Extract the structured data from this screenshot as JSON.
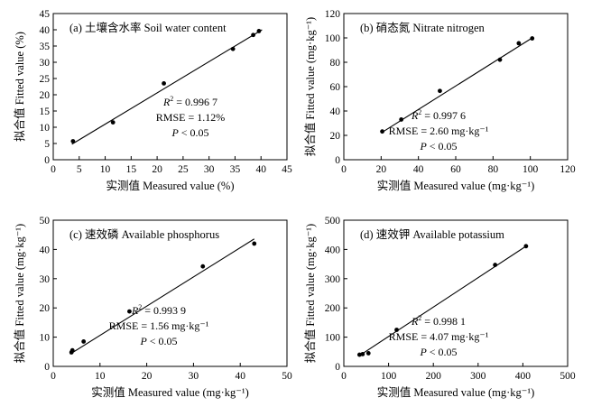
{
  "chart_data": [
    {
      "type": "scatter",
      "label": "(a) 土壤含水率 Soil water content",
      "xlabel": "实测值 Measured value (%)",
      "ylabel": "拟合值 Fitted value (%)",
      "xlim": [
        0,
        45
      ],
      "ylim": [
        0,
        45
      ],
      "xticks": [
        0,
        5,
        10,
        15,
        20,
        25,
        30,
        35,
        40,
        45
      ],
      "yticks": [
        0,
        5,
        10,
        15,
        20,
        25,
        30,
        35,
        40,
        45
      ],
      "grid": false,
      "points": {
        "x": [
          3.8,
          11.5,
          21.3,
          34.6,
          38.5,
          39.6
        ],
        "y": [
          5.7,
          11.5,
          23.5,
          34.1,
          38.4,
          39.6
        ]
      },
      "fit_line": {
        "x": [
          3.6,
          40.2
        ],
        "y": [
          4.8,
          40.0
        ]
      },
      "stats": {
        "r2_prefix": "R",
        "r2_sup": "2",
        "r2_value": " = 0.996 7",
        "rmse": "RMSE = 1.12%",
        "p_italic": "P",
        "p_rest": " < 0.05"
      }
    },
    {
      "type": "scatter",
      "label": "(b) 硝态氮 Nitrate nitrogen",
      "xlabel": "实测值 Measured value (mg·kg⁻¹)",
      "ylabel": "拟合值 Fitted value (mg·kg⁻¹)",
      "xlim": [
        0,
        120
      ],
      "ylim": [
        0,
        120
      ],
      "xticks": [
        0,
        20,
        40,
        60,
        80,
        100,
        120
      ],
      "yticks": [
        0,
        20,
        40,
        60,
        80,
        100,
        120
      ],
      "grid": false,
      "points": {
        "x": [
          20.6,
          30.8,
          51.5,
          83.7,
          93.8,
          101.0
        ],
        "y": [
          23.2,
          33.0,
          56.5,
          82.1,
          95.6,
          99.6
        ]
      },
      "fit_line": {
        "x": [
          20.0,
          101.0
        ],
        "y": [
          22.0,
          100.0
        ]
      },
      "stats": {
        "r2_prefix": "R",
        "r2_sup": "2",
        "r2_value": " = 0.997 6",
        "rmse": "RMSE = 2.60 mg·kg⁻¹",
        "p_italic": "P",
        "p_rest": " < 0.05"
      }
    },
    {
      "type": "scatter",
      "label": "(c) 速效磷 Available phosphorus",
      "xlabel": "实测值 Measured value (mg·kg⁻¹)",
      "ylabel": "拟合值 Fitted value (mg·kg⁻¹)",
      "xlim": [
        0,
        50
      ],
      "ylim": [
        0,
        50
      ],
      "xticks": [
        0,
        10,
        20,
        30,
        40,
        50
      ],
      "yticks": [
        0,
        10,
        20,
        30,
        40,
        50
      ],
      "grid": false,
      "points": {
        "x": [
          3.9,
          4.1,
          6.5,
          16.3,
          32.0,
          43.0
        ],
        "y": [
          4.8,
          5.5,
          8.5,
          18.8,
          34.2,
          42.0
        ]
      },
      "fit_line": {
        "x": [
          3.6,
          43.0
        ],
        "y": [
          4.2,
          43.6
        ]
      },
      "stats": {
        "r2_prefix": "R",
        "r2_sup": "2",
        "r2_value": " = 0.993 9",
        "rmse": "RMSE = 1.56 mg·kg⁻¹",
        "p_italic": "P",
        "p_rest": " < 0.05"
      }
    },
    {
      "type": "scatter",
      "label": "(d) 速效钾 Available potassium",
      "xlabel": "实测值 Measured value (mg·kg⁻¹)",
      "ylabel": "拟合值 Fitted value (mg·kg⁻¹)",
      "xlim": [
        0,
        500
      ],
      "ylim": [
        0,
        500
      ],
      "xticks": [
        0,
        100,
        200,
        300,
        400,
        500
      ],
      "yticks": [
        0,
        100,
        200,
        300,
        400,
        500
      ],
      "grid": false,
      "points": {
        "x": [
          35,
          42,
          55,
          118,
          338,
          407
        ],
        "y": [
          40,
          42,
          45,
          125,
          347,
          411
        ]
      },
      "fit_line": {
        "x": [
          33,
          408
        ],
        "y": [
          35,
          412
        ]
      },
      "stats": {
        "r2_prefix": "R",
        "r2_sup": "2",
        "r2_value": " = 0.998 1",
        "rmse": "RMSE = 4.07 mg·kg⁻¹",
        "p_italic": "P",
        "p_rest": " < 0.05"
      }
    }
  ]
}
